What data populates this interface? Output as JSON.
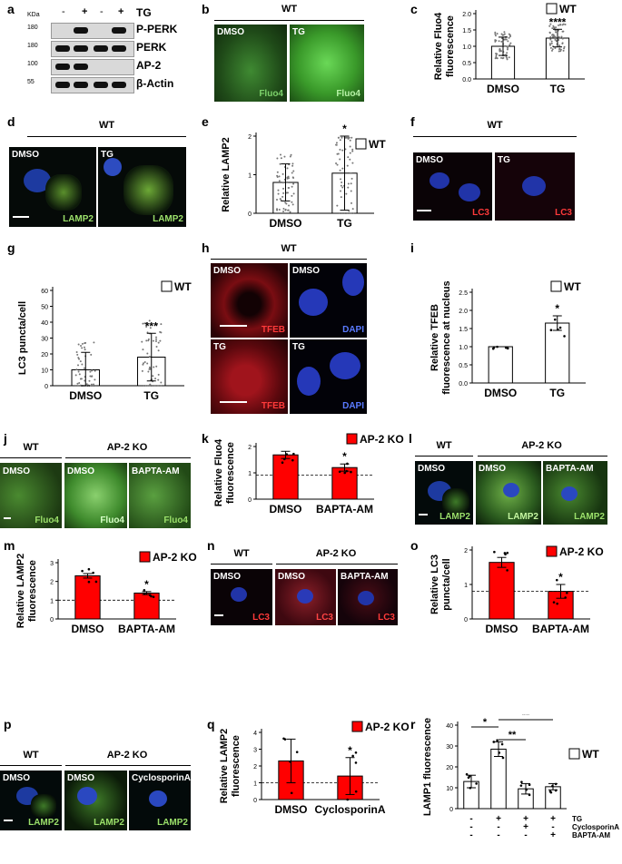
{
  "panels": {
    "a": {
      "label": "a",
      "kda_label": "KDa",
      "lane_signs": [
        "-",
        "+",
        "-",
        "+"
      ],
      "tg_label": "TG",
      "rows": [
        {
          "mw": "180",
          "name": "P-PERK"
        },
        {
          "mw": "180",
          "name": "PERK"
        },
        {
          "mw": "100",
          "name": "AP-2"
        },
        {
          "mw": "55",
          "name": "β-Actin"
        }
      ]
    },
    "b": {
      "label": "b",
      "header": "WT",
      "images": [
        {
          "cond": "DMSO",
          "stain": "Fluo4"
        },
        {
          "cond": "TG",
          "stain": "Fluo4"
        }
      ]
    },
    "d": {
      "label": "d",
      "header": "WT",
      "images": [
        {
          "cond": "DMSO",
          "stain": "LAMP2"
        },
        {
          "cond": "TG",
          "stain": "LAMP2"
        }
      ]
    },
    "f": {
      "label": "f",
      "header": "WT",
      "images": [
        {
          "cond": "DMSO",
          "stain": "LC3"
        },
        {
          "cond": "TG",
          "stain": "LC3"
        }
      ]
    },
    "h": {
      "label": "h",
      "header": "WT",
      "images": [
        {
          "cond": "DMSO",
          "stain": "TFEB"
        },
        {
          "cond": "DMSO",
          "stain": "DAPI"
        },
        {
          "cond": "TG",
          "stain": "TFEB"
        },
        {
          "cond": "TG",
          "stain": "DAPI"
        }
      ]
    },
    "j": {
      "label": "j",
      "groups": [
        "WT",
        "AP-2 KO"
      ],
      "images": [
        {
          "cond": "DMSO",
          "stain": "Fluo4"
        },
        {
          "cond": "DMSO",
          "stain": "Fluo4"
        },
        {
          "cond": "BAPTA-AM",
          "stain": "Fluo4"
        }
      ]
    },
    "l": {
      "label": "l",
      "groups": [
        "WT",
        "AP-2 KO"
      ],
      "images": [
        {
          "cond": "DMSO",
          "stain": "LAMP2"
        },
        {
          "cond": "DMSO",
          "stain": "LAMP2"
        },
        {
          "cond": "BAPTA-AM",
          "stain": "LAMP2"
        }
      ]
    },
    "n": {
      "label": "n",
      "groups": [
        "WT",
        "AP-2 KO"
      ],
      "images": [
        {
          "cond": "DMSO",
          "stain": "LC3"
        },
        {
          "cond": "DMSO",
          "stain": "LC3"
        },
        {
          "cond": "BAPTA-AM",
          "stain": "LC3"
        }
      ]
    },
    "p": {
      "label": "p",
      "groups": [
        "WT",
        "AP-2 KO"
      ],
      "images": [
        {
          "cond": "DMSO",
          "stain": "LAMP2"
        },
        {
          "cond": "DMSO",
          "stain": "LAMP2"
        },
        {
          "cond": "CyclosporinA",
          "stain": "LAMP2"
        }
      ]
    },
    "r_rows": {
      "labels": [
        "TG",
        "CyclosporinA",
        "BAPTA-AM"
      ],
      "signs": [
        [
          "-",
          "+",
          "+",
          "+"
        ],
        [
          "-",
          "-",
          "+",
          "-"
        ],
        [
          "-",
          "-",
          "-",
          "+"
        ]
      ]
    }
  },
  "colors": {
    "wt_bar": "#ffffff",
    "ko_bar": "#ff0000",
    "fluo4": "#3fae2f",
    "lamp2": "#7ec83a",
    "lc3": "#e0202a",
    "dapi": "#2b3fd0"
  },
  "chart_data": [
    {
      "id": "c",
      "label": "c",
      "type": "bar",
      "categories": [
        "DMSO",
        "TG"
      ],
      "values": [
        1.0,
        1.25
      ],
      "errors": [
        0.28,
        0.27
      ],
      "ylabel": "Relative Fluo4 fluorescence",
      "ylim": [
        0,
        2.0
      ],
      "yticks": [
        "0.0",
        "0.5",
        "1.0",
        "1.5",
        "2.0"
      ],
      "legend": "WT",
      "significance": [
        "",
        "****"
      ],
      "bar_color": "#ffffff",
      "refline": null,
      "points": "dense"
    },
    {
      "id": "e",
      "label": "e",
      "type": "bar",
      "categories": [
        "DMSO",
        "TG"
      ],
      "values": [
        1.0,
        1.3
      ],
      "errors": [
        0.6,
        1.2
      ],
      "ylabel": "Relative LAMP2",
      "ylim": [
        0,
        2.5
      ],
      "yticks": [
        "0",
        "1",
        "2"
      ],
      "legend": "WT",
      "significance": [
        "",
        "*"
      ],
      "bar_color": "#ffffff",
      "refline": null,
      "points": "dense"
    },
    {
      "id": "g",
      "label": "g",
      "type": "bar",
      "categories": [
        "DMSO",
        "TG"
      ],
      "values": [
        10,
        18
      ],
      "errors": [
        11,
        15
      ],
      "ylabel": "LC3 puncta/cell",
      "ylim": [
        0,
        60
      ],
      "yticks": [
        "0",
        "10",
        "20",
        "30",
        "40",
        "50",
        "60"
      ],
      "legend": "WT",
      "significance": [
        "",
        "***"
      ],
      "bar_color": "#ffffff",
      "refline": null,
      "points": "dense"
    },
    {
      "id": "i",
      "label": "i",
      "type": "bar",
      "categories": [
        "DMSO",
        "TG"
      ],
      "values": [
        1.0,
        1.65
      ],
      "errors": [
        0.0,
        0.2
      ],
      "ylabel": "Relative TFEB fluorescence at nucleus",
      "ylim": [
        0,
        2.5
      ],
      "yticks": [
        "0.0",
        "0.5",
        "1.0",
        "1.5",
        "2.0",
        "2.5"
      ],
      "legend": "WT",
      "significance": [
        "",
        "*"
      ],
      "bar_color": "#ffffff",
      "refline": null,
      "points": "few"
    },
    {
      "id": "k",
      "label": "k",
      "type": "bar",
      "categories": [
        "DMSO",
        "BAPTA-AM"
      ],
      "values": [
        1.85,
        1.32
      ],
      "errors": [
        0.15,
        0.15
      ],
      "ylabel": "Relative Fluo4 fluorescence",
      "ylim": [
        0,
        2.2
      ],
      "yticks": [
        "0",
        "1",
        "2"
      ],
      "legend": "AP-2 KO",
      "significance": [
        "",
        "*"
      ],
      "bar_color": "#ff0000",
      "refline": 1,
      "points": "few"
    },
    {
      "id": "m",
      "label": "m",
      "type": "bar",
      "categories": [
        "DMSO",
        "BAPTA-AM"
      ],
      "values": [
        2.3,
        1.38
      ],
      "errors": [
        0.12,
        0.08
      ],
      "ylabel": "Relative LAMP2 fluorescence",
      "ylim": [
        0,
        3
      ],
      "yticks": [
        "0",
        "1",
        "2",
        "3"
      ],
      "legend": "AP-2 KO",
      "significance": [
        "",
        "*"
      ],
      "bar_color": "#ff0000",
      "refline": 1,
      "points": "few"
    },
    {
      "id": "o",
      "label": "o",
      "type": "bar",
      "categories": [
        "DMSO",
        "BAPTA-AM"
      ],
      "values": [
        2.05,
        1.0
      ],
      "errors": [
        0.18,
        0.25
      ],
      "ylabel": "Relative LC3 puncta/cell",
      "ylim": [
        0,
        2.5
      ],
      "yticks": [
        "0",
        "1",
        "2"
      ],
      "legend": "AP-2 KO",
      "significance": [
        "",
        "*"
      ],
      "bar_color": "#ff0000",
      "refline": 1,
      "points": "few"
    },
    {
      "id": "q",
      "label": "q",
      "type": "bar",
      "categories": [
        "DMSO",
        "CyclosporinA"
      ],
      "values": [
        2.3,
        1.4
      ],
      "errors": [
        1.3,
        1.1
      ],
      "ylabel": "Relative LAMP2 fluorescence",
      "ylim": [
        0,
        4
      ],
      "yticks": [
        "0",
        "1",
        "2",
        "3",
        "4"
      ],
      "legend": "AP-2 KO",
      "significance": [
        "",
        "*"
      ],
      "bar_color": "#ff0000",
      "refline": 1,
      "points": "few"
    },
    {
      "id": "r",
      "label": "r",
      "type": "bar",
      "categories": [
        "1",
        "2",
        "3",
        "4"
      ],
      "values": [
        13,
        28.5,
        9.5,
        10.5
      ],
      "errors": [
        3,
        3.5,
        2.5,
        1.5
      ],
      "ylabel": "LAMP1 fluorescence",
      "ylim": [
        0,
        40
      ],
      "yticks": [
        "0",
        "10",
        "20",
        "30",
        "40"
      ],
      "legend": "WT",
      "significance": [
        "",
        "",
        "",
        ""
      ],
      "bar_color": "#ffffff",
      "refline": null,
      "points": "few",
      "brackets": [
        {
          "from": 0,
          "to": 1,
          "label": "*"
        },
        {
          "from": 1,
          "to": 2,
          "label": "**"
        },
        {
          "from": 1,
          "to": 3,
          "label": "**"
        }
      ]
    }
  ]
}
